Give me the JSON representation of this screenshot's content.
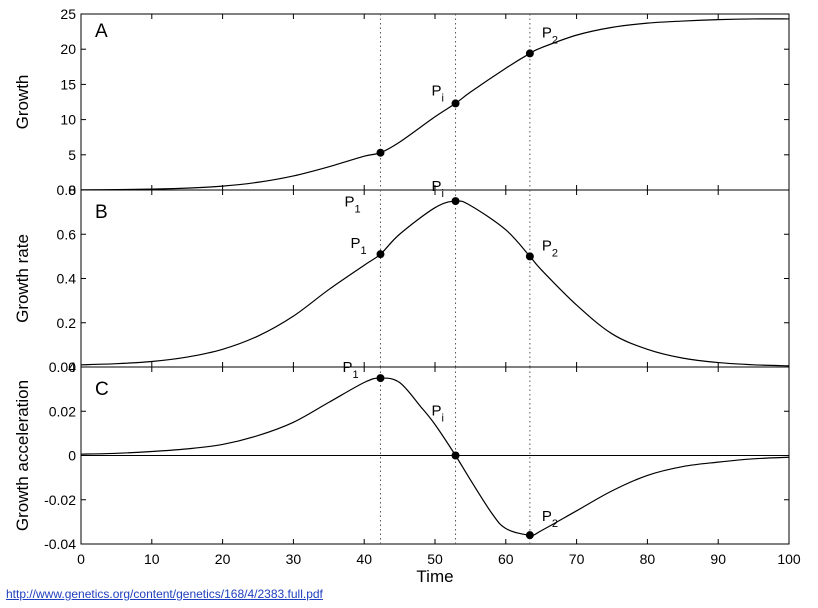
{
  "chart_data": [
    {
      "type": "line",
      "panel_letter": "A",
      "ylabel": "Growth",
      "xlim": [
        0,
        100
      ],
      "ylim": [
        0,
        25
      ],
      "yticks": [
        "0",
        "5",
        "10",
        "15",
        "20",
        "25"
      ],
      "series": [
        {
          "x": [
            0,
            5,
            10,
            15,
            20,
            25,
            30,
            35,
            40,
            42.3,
            45,
            50,
            52.9,
            55,
            60,
            63.4,
            65,
            70,
            75,
            80,
            85,
            90,
            95,
            100
          ],
          "y": [
            0.03,
            0.06,
            0.13,
            0.27,
            0.55,
            1.1,
            2.0,
            3.3,
            4.8,
            5.3,
            6.8,
            10.4,
            12.3,
            13.9,
            17.3,
            19.4,
            20.2,
            22.0,
            23.1,
            23.7,
            24.0,
            24.2,
            24.3,
            24.3
          ]
        }
      ],
      "points": [
        {
          "label": "P",
          "sub": "1",
          "x": 42.3,
          "y": 5.3
        },
        {
          "label": "P",
          "sub": "i",
          "x": 52.9,
          "y": 12.3
        },
        {
          "label": "P",
          "sub": "2",
          "x": 63.4,
          "y": 19.4
        }
      ]
    },
    {
      "type": "line",
      "panel_letter": "B",
      "ylabel": "Growth rate",
      "xlim": [
        0,
        100
      ],
      "ylim": [
        0,
        0.8
      ],
      "yticks": [
        "0",
        "0.2",
        "0.4",
        "0.6",
        "0.8"
      ],
      "series": [
        {
          "x": [
            0,
            5,
            10,
            15,
            20,
            25,
            30,
            35,
            40,
            42.3,
            45,
            50,
            52.9,
            55,
            60,
            63.4,
            65,
            70,
            75,
            80,
            85,
            90,
            95,
            100
          ],
          "y": [
            0.01,
            0.015,
            0.025,
            0.045,
            0.08,
            0.14,
            0.23,
            0.35,
            0.46,
            0.51,
            0.6,
            0.72,
            0.75,
            0.73,
            0.62,
            0.5,
            0.44,
            0.28,
            0.15,
            0.08,
            0.04,
            0.02,
            0.01,
            0.005
          ]
        }
      ],
      "points": [
        {
          "label": "P",
          "sub": "1",
          "x": 42.3,
          "y": 0.51
        },
        {
          "label": "P",
          "sub": "i",
          "x": 52.9,
          "y": 0.75
        },
        {
          "label": "P",
          "sub": "2",
          "x": 63.4,
          "y": 0.5
        }
      ]
    },
    {
      "type": "line",
      "panel_letter": "C",
      "ylabel": "Growth acceleration",
      "xlabel": "Time",
      "xlim": [
        0,
        100
      ],
      "ylim": [
        -0.04,
        0.04
      ],
      "yticks": [
        "-0.04",
        "-0.02",
        "0",
        "0.02",
        "0.04"
      ],
      "xticks": [
        "0",
        "10",
        "20",
        "30",
        "40",
        "50",
        "60",
        "70",
        "80",
        "90",
        "100"
      ],
      "series": [
        {
          "x": [
            0,
            5,
            10,
            15,
            20,
            25,
            30,
            35,
            40,
            42.3,
            45,
            48,
            50,
            52.9,
            55,
            58,
            60,
            63.4,
            65,
            70,
            75,
            80,
            85,
            90,
            95,
            100
          ],
          "y": [
            0.0006,
            0.001,
            0.0018,
            0.003,
            0.005,
            0.009,
            0.015,
            0.024,
            0.033,
            0.035,
            0.033,
            0.022,
            0.014,
            0.0,
            -0.011,
            -0.026,
            -0.033,
            -0.036,
            -0.034,
            -0.025,
            -0.016,
            -0.009,
            -0.005,
            -0.003,
            -0.0015,
            -0.0008
          ]
        }
      ],
      "points": [
        {
          "label": "P",
          "sub": "1",
          "x": 42.3,
          "y": 0.035
        },
        {
          "label": "P",
          "sub": "i",
          "x": 52.9,
          "y": 0.0
        },
        {
          "label": "P",
          "sub": "2",
          "x": 63.4,
          "y": -0.036
        }
      ]
    }
  ],
  "vlines_x": [
    42.3,
    52.9,
    63.4
  ],
  "source_link": "http://www.genetics.org/content/genetics/168/4/2383.full.pdf"
}
